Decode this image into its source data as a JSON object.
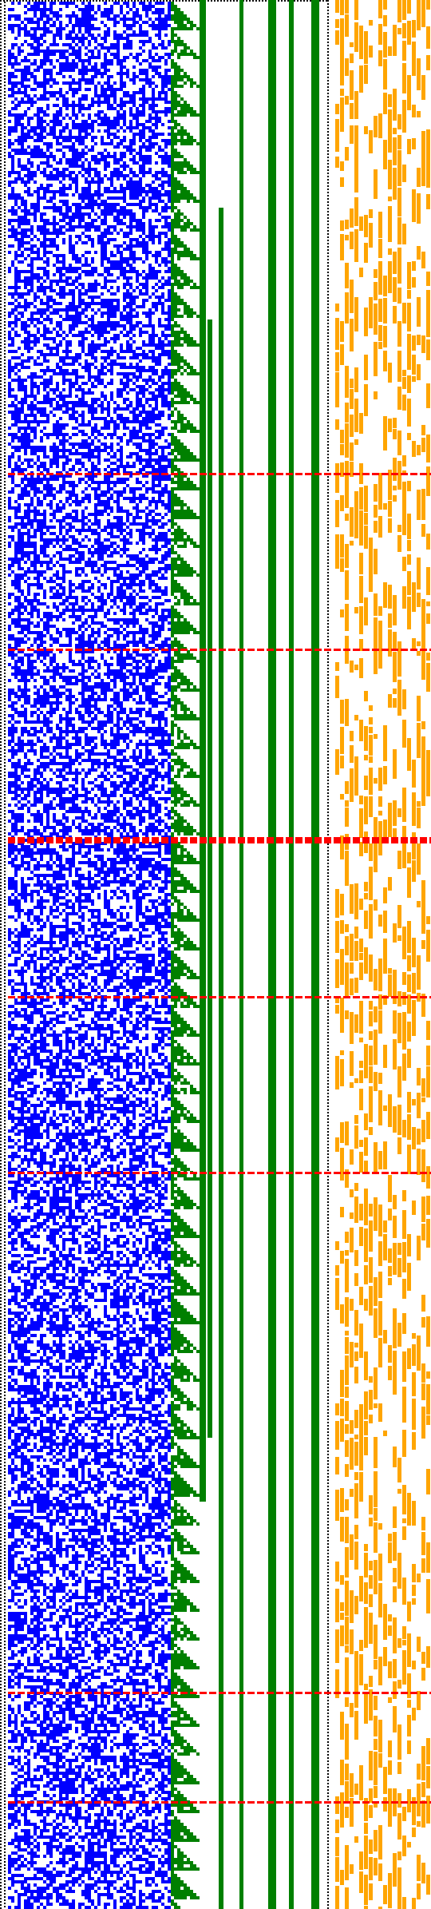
{
  "colors": {
    "background": "#ffffff",
    "border_dots": "#000000",
    "random_cells": "#0000ff",
    "staircase_cells": "#008000",
    "fixed_columns": "#008000",
    "side_cells": "#ffa500",
    "separator_lines": "#ff0000"
  },
  "regions": [
    {
      "name": "dotted-border",
      "shape": "vertical-dotted-line"
    },
    {
      "name": "random-block",
      "shape": "dense-random-grid"
    },
    {
      "name": "staircase-block",
      "shape": "diagonal-stair-steps"
    },
    {
      "name": "fixed-columns",
      "shape": "solid-vertical-bars"
    },
    {
      "name": "side-block",
      "shape": "sparse-vertical-streaks"
    }
  ],
  "separator_count": 7
}
